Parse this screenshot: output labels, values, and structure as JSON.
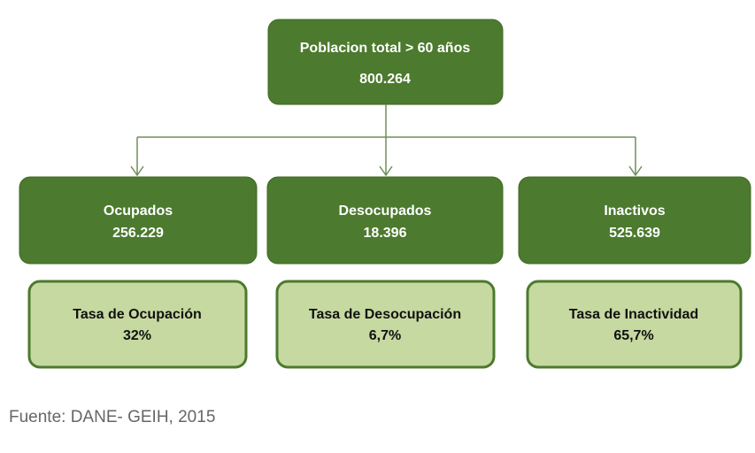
{
  "root": {
    "label": "Poblacion total > 60 años",
    "value": "800.264"
  },
  "groups": [
    {
      "label": "Ocupados",
      "value": "256.229",
      "rate": {
        "label": "Tasa de Ocupación",
        "value": "32%"
      }
    },
    {
      "label": "Desocupados",
      "value": "18.396",
      "rate": {
        "label": "Tasa de Desocupación",
        "value": "6,7%"
      }
    },
    {
      "label": "Inactivos",
      "value": "525.639",
      "rate": {
        "label": "Tasa de Inactividad",
        "value": "65,7%"
      }
    }
  ],
  "footer": "Fuente: DANE- GEIH, 2015"
}
